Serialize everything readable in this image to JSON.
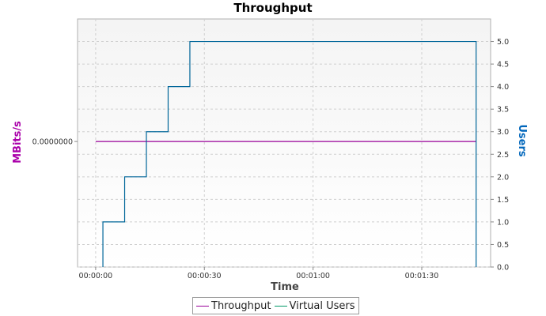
{
  "chart_data": {
    "type": "line",
    "title": "Throughput",
    "xlabel": "Time",
    "ylabel_left": "MBits/s",
    "ylabel_right": "Users",
    "x_ticks": [
      "00:00:00",
      "00:00:30",
      "00:01:00",
      "00:01:30"
    ],
    "x_tick_seconds": [
      0,
      30,
      60,
      90
    ],
    "x_range_seconds": [
      -5,
      109
    ],
    "y_left_ticks": [
      "0.0000000"
    ],
    "y_right_ticks": [
      "0.0",
      "0.5",
      "1.0",
      "1.5",
      "2.0",
      "2.5",
      "3.0",
      "3.5",
      "4.0",
      "4.5",
      "5.0"
    ],
    "y_right_range": [
      0,
      5.5
    ],
    "grid": true,
    "legend_position": "bottom",
    "series": [
      {
        "name": "Throughput",
        "axis": "left",
        "color": "#990099",
        "x_seconds": [
          0,
          105
        ],
        "values": [
          0,
          0
        ]
      },
      {
        "name": "Virtual Users",
        "axis": "right",
        "color": "#006699",
        "legend_color": "#009966",
        "step": true,
        "x_seconds": [
          2,
          8,
          14,
          20,
          26,
          105,
          105
        ],
        "values": [
          1,
          2,
          3,
          4,
          5,
          5,
          0
        ]
      }
    ]
  }
}
